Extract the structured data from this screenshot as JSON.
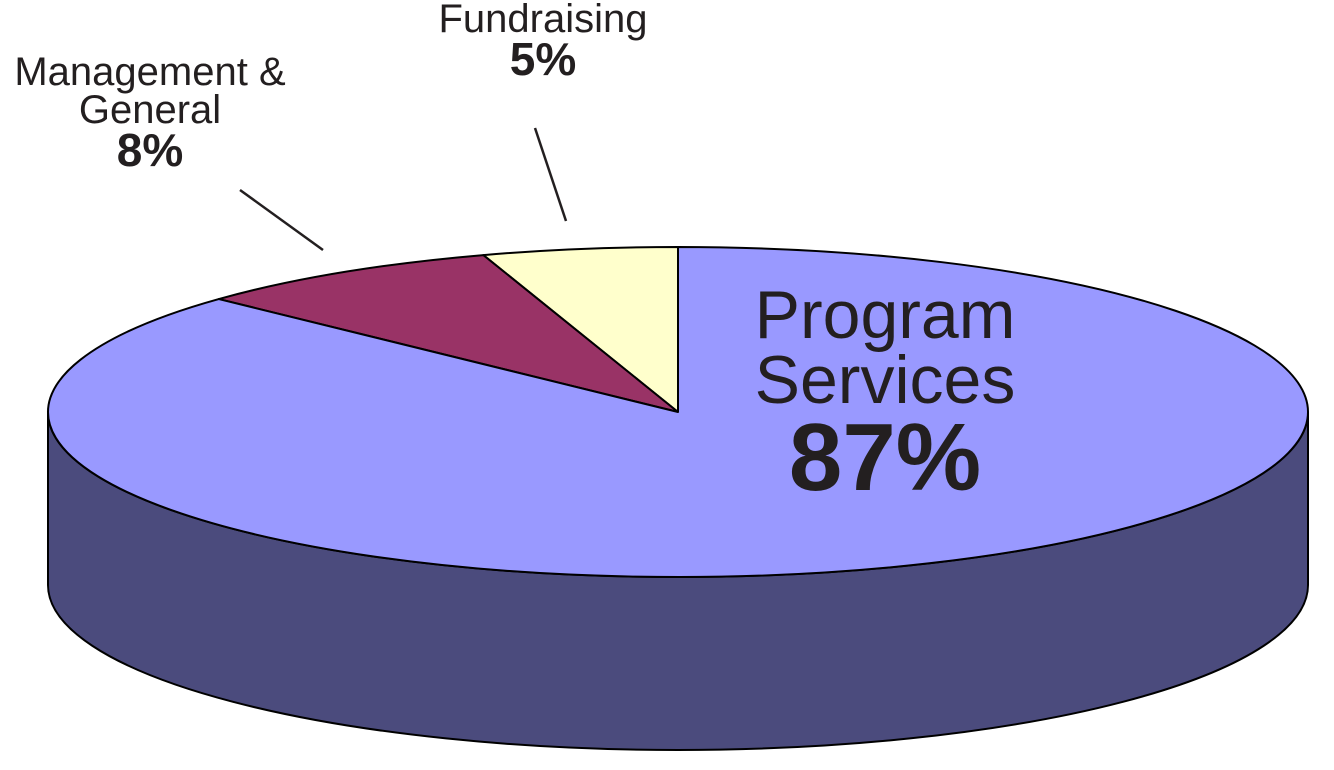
{
  "chart_data": {
    "type": "pie",
    "categories": [
      "Program Services",
      "Management & General",
      "Fundraising"
    ],
    "values": [
      87,
      8,
      5
    ],
    "value_labels": [
      "87%",
      "8%",
      "5%"
    ],
    "colors": [
      "#9999ff",
      "#993366",
      "#ffffcc"
    ],
    "side_color": "#4b4b7d"
  }
}
